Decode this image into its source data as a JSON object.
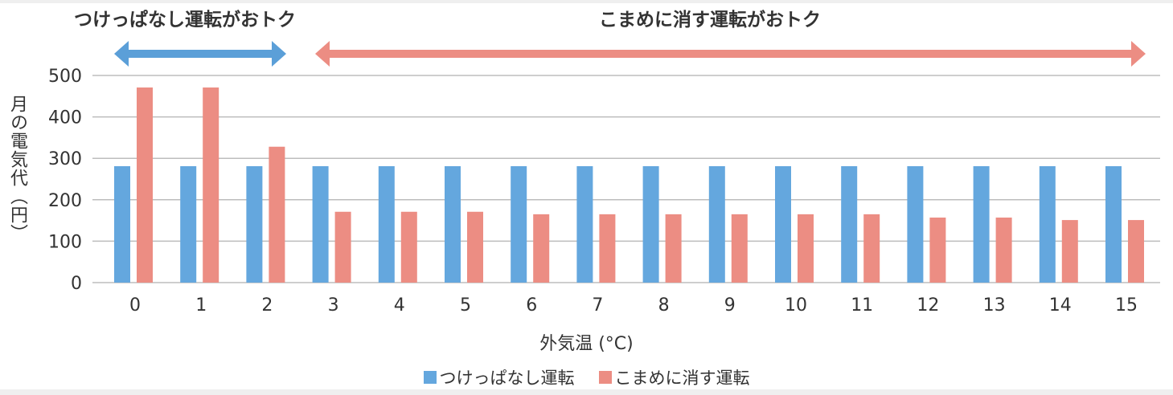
{
  "annotations": {
    "left_label": "つけっぱなし運転がおトク",
    "right_label": "こまめに消す運転がおトク",
    "left_arrow_color": "#5b9fd8",
    "right_arrow_color": "#ec8d83"
  },
  "axis": {
    "y_label": "月の電気代（円）",
    "x_label": "外気温 (°C)"
  },
  "legend": [
    {
      "label": "つけっぱなし運転",
      "color": "#64a7de"
    },
    {
      "label": "こまめに消す運転",
      "color": "#ec8d83"
    }
  ],
  "chart_data": {
    "type": "bar",
    "title": "",
    "xlabel": "外気温 (°C)",
    "ylabel": "月の電気代（円）",
    "categories": [
      "0",
      "1",
      "2",
      "3",
      "4",
      "5",
      "6",
      "7",
      "8",
      "9",
      "10",
      "11",
      "12",
      "13",
      "14",
      "15"
    ],
    "series": [
      {
        "name": "つけっぱなし運転",
        "color": "#64a7de",
        "values": [
          281,
          281,
          281,
          281,
          281,
          281,
          281,
          281,
          281,
          281,
          281,
          281,
          281,
          281,
          281,
          281
        ]
      },
      {
        "name": "こまめに消す運転",
        "color": "#ec8d83",
        "values": [
          471,
          471,
          328,
          171,
          171,
          171,
          165,
          165,
          165,
          165,
          165,
          165,
          157,
          157,
          151,
          151
        ]
      }
    ],
    "yticks": [
      0,
      100,
      200,
      300,
      400,
      500
    ],
    "ylim": [
      0,
      500
    ],
    "grid": true,
    "legend_position": "bottom",
    "annotations": [
      {
        "text": "つけっぱなし運転がおトク",
        "x_range": [
          "0",
          "2"
        ],
        "arrow": "double",
        "color": "#5b9fd8"
      },
      {
        "text": "こまめに消す運転がおトク",
        "x_range": [
          "3",
          "15"
        ],
        "arrow": "double",
        "color": "#ec8d83"
      }
    ]
  }
}
